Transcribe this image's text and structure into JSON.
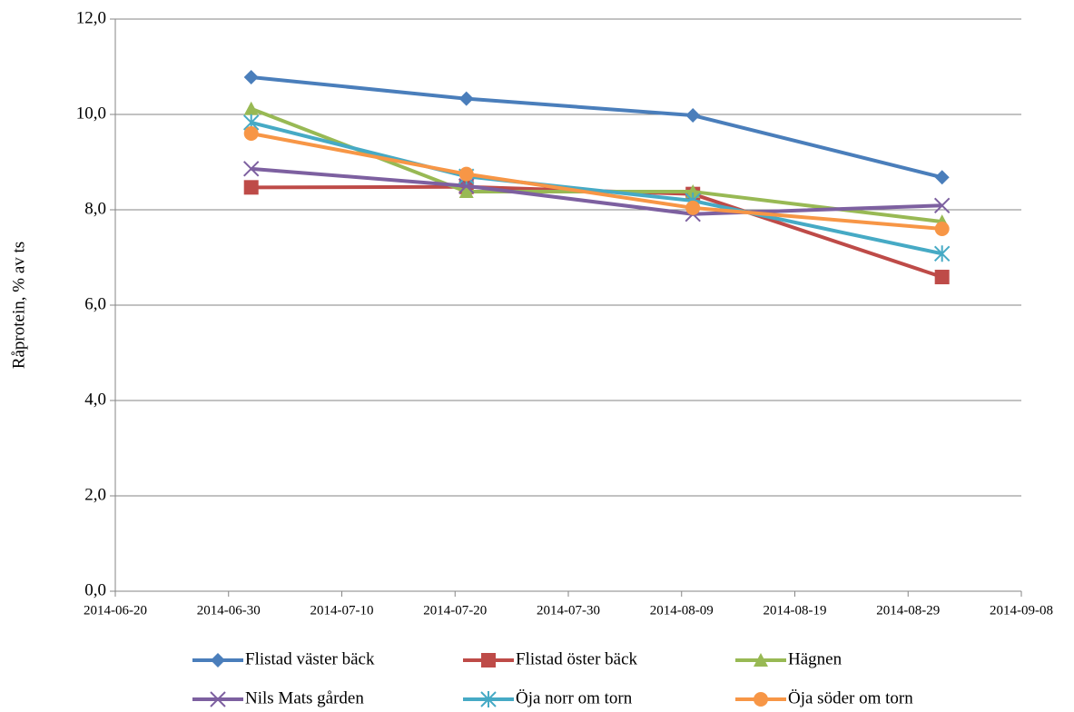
{
  "chart_data": {
    "type": "line",
    "y_label": "Råprotein, %  av ts",
    "x": [
      "2014-07-02",
      "2014-07-21",
      "2014-08-10",
      "2014-09-01"
    ],
    "xlim": [
      "2014-06-20",
      "2014-09-08"
    ],
    "xticks": [
      "2014-06-20",
      "2014-06-30",
      "2014-07-10",
      "2014-07-20",
      "2014-07-30",
      "2014-08-09",
      "2014-08-19",
      "2014-08-29",
      "2014-09-08"
    ],
    "ylim": [
      0,
      12
    ],
    "yticks": [
      {
        "value": 0,
        "label": "0,0"
      },
      {
        "value": 2,
        "label": "2,0"
      },
      {
        "value": 4,
        "label": "4,0"
      },
      {
        "value": 6,
        "label": "6,0"
      },
      {
        "value": 8,
        "label": "8,0"
      },
      {
        "value": 10,
        "label": "10,0"
      },
      {
        "value": 12,
        "label": "12,0"
      }
    ],
    "grid": true,
    "legend": "bottom",
    "series": [
      {
        "name": "Flistad väster bäck",
        "color": "#4a7ebb",
        "marker": "diamond",
        "values": [
          10.78,
          10.33,
          9.98,
          8.68
        ]
      },
      {
        "name": "Flistad öster bäck",
        "color": "#be4b48",
        "marker": "square",
        "values": [
          8.47,
          8.48,
          8.33,
          6.59
        ]
      },
      {
        "name": "Hägnen",
        "color": "#98b954",
        "marker": "triangle",
        "values": [
          10.12,
          8.38,
          8.38,
          7.75
        ]
      },
      {
        "name": "Nils Mats gården",
        "color": "#7d60a0",
        "marker": "x",
        "values": [
          8.86,
          8.5,
          7.91,
          8.09
        ]
      },
      {
        "name": "Öja norr om torn",
        "color": "#46aac5",
        "marker": "asterisk",
        "values": [
          9.83,
          8.7,
          8.19,
          7.08
        ]
      },
      {
        "name": "Öja söder om torn",
        "color": "#f79646",
        "marker": "circle",
        "values": [
          9.6,
          8.75,
          8.04,
          7.6
        ]
      }
    ]
  }
}
